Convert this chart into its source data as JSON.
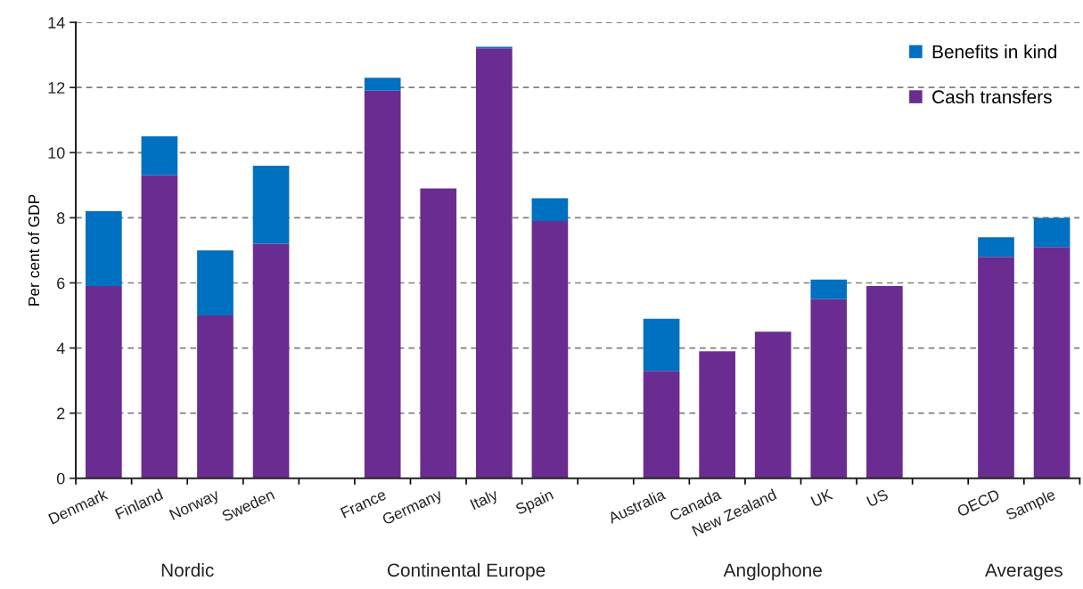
{
  "chart_data": {
    "type": "bar",
    "stacked": true,
    "ylabel": "Per cent of GDP",
    "categories": [
      "Denmark",
      "Finland",
      "Norway",
      "Sweden",
      null,
      "France",
      "Germany",
      "Italy",
      "Spain",
      null,
      "Australia",
      "Canada",
      "New Zealand",
      "UK",
      "US",
      null,
      "OECD",
      "Sample"
    ],
    "series": [
      {
        "name": "Cash transfers",
        "color": "#6a2c91",
        "values": [
          5.9,
          9.3,
          5.0,
          7.2,
          null,
          11.9,
          8.9,
          13.2,
          7.9,
          null,
          3.3,
          3.9,
          4.5,
          5.5,
          5.9,
          null,
          6.8,
          7.1
        ]
      },
      {
        "name": "Benefits in kind",
        "color": "#0070c0",
        "values": [
          2.3,
          1.2,
          2.0,
          2.4,
          null,
          0.4,
          0,
          0.05,
          0.7,
          null,
          1.6,
          0,
          0,
          0.6,
          0,
          null,
          0.6,
          0.9
        ]
      }
    ],
    "ylim": [
      0,
      14
    ],
    "yticks": [
      0,
      2,
      4,
      6,
      8,
      10,
      12,
      14
    ],
    "grid": "y",
    "legend": "top right",
    "annotations": [
      "Nordic",
      "Continental Europe",
      "Anglophone",
      "Averages"
    ]
  }
}
